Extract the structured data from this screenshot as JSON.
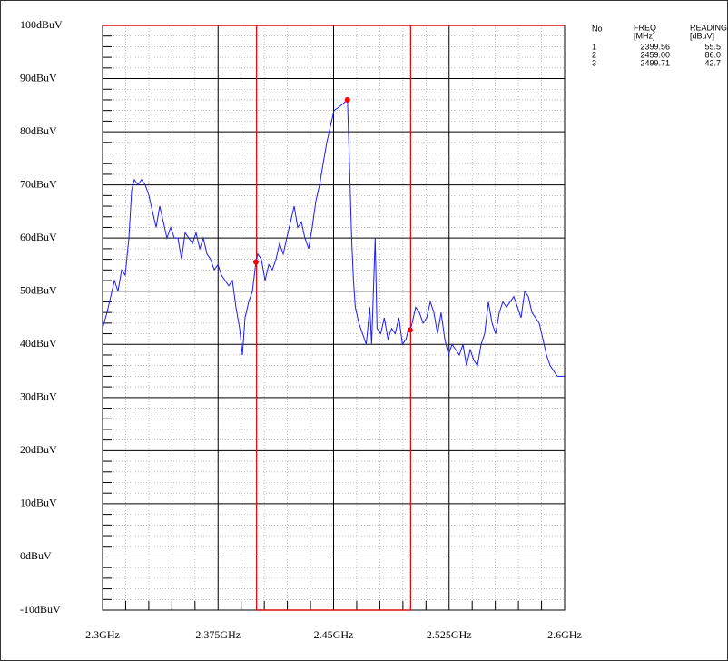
{
  "chart_data": {
    "type": "line",
    "color": "#1a1aff",
    "xlim": [
      2300,
      2600
    ],
    "xticks": [
      {
        "value": 2300,
        "label": "2.3GHz"
      },
      {
        "value": 2375,
        "label": "2.375GHz"
      },
      {
        "value": 2450,
        "label": "2.45GHz"
      },
      {
        "value": 2525,
        "label": "2.525GHz"
      },
      {
        "value": 2600,
        "label": "2.6GHz"
      }
    ],
    "ylim": [
      -10,
      100
    ],
    "yticks": [
      {
        "value": 100,
        "label": "100dBuV"
      },
      {
        "value": 90,
        "label": "90dBuV"
      },
      {
        "value": 80,
        "label": "80dBuV"
      },
      {
        "value": 70,
        "label": "70dBuV"
      },
      {
        "value": 60,
        "label": "60dBuV"
      },
      {
        "value": 50,
        "label": "50dBuV"
      },
      {
        "value": 40,
        "label": "40dBuV"
      },
      {
        "value": 30,
        "label": "30dBuV"
      },
      {
        "value": 20,
        "label": "20dBuV"
      },
      {
        "value": 10,
        "label": "10dBuV"
      },
      {
        "value": 0,
        "label": "0dBuV"
      },
      {
        "value": -10,
        "label": "-10dBuV"
      }
    ],
    "grid": true,
    "limit_band": [
      2400,
      2500
    ],
    "limit_color": "#e00000",
    "x": [
      2300.0,
      2302.9,
      2305.3,
      2307.7,
      2310.0,
      2312.4,
      2314.7,
      2317.1,
      2318.9,
      2320.6,
      2323.0,
      2325.3,
      2327.7,
      2330.1,
      2332.4,
      2334.8,
      2337.1,
      2339.5,
      2341.8,
      2344.2,
      2346.6,
      2348.9,
      2351.3,
      2353.6,
      2356.0,
      2358.4,
      2360.7,
      2363.1,
      2365.4,
      2367.8,
      2370.1,
      2372.5,
      2374.9,
      2377.2,
      2379.6,
      2381.9,
      2384.3,
      2386.6,
      2389.0,
      2390.8,
      2392.5,
      2394.9,
      2397.3,
      2399.56,
      2400.8,
      2403.1,
      2405.5,
      2407.9,
      2410.2,
      2412.6,
      2414.9,
      2417.3,
      2419.6,
      2422.0,
      2424.4,
      2426.7,
      2429.1,
      2431.4,
      2433.8,
      2436.1,
      2438.5,
      2440.9,
      2443.2,
      2445.6,
      2447.9,
      2450.3,
      2452.7,
      2455.0,
      2459.0,
      2460.2,
      2461.7,
      2462.9,
      2464.1,
      2466.4,
      2468.8,
      2471.2,
      2473.5,
      2474.7,
      2477.0,
      2478.2,
      2480.6,
      2482.9,
      2485.3,
      2487.7,
      2490.0,
      2492.4,
      2494.7,
      2497.1,
      2498.6,
      2499.71,
      2501.0,
      2503.3,
      2505.7,
      2508.1,
      2510.4,
      2512.8,
      2515.1,
      2517.5,
      2519.8,
      2522.2,
      2524.6,
      2526.9,
      2529.3,
      2531.6,
      2534.0,
      2536.3,
      2538.7,
      2541.1,
      2543.4,
      2545.8,
      2548.1,
      2550.5,
      2552.9,
      2555.2,
      2557.6,
      2559.9,
      2562.3,
      2564.6,
      2567.0,
      2569.4,
      2571.7,
      2574.1,
      2576.4,
      2578.8,
      2581.1,
      2583.5,
      2585.9,
      2588.2,
      2590.6,
      2592.9,
      2595.3,
      2597.6,
      2600.0
    ],
    "values": [
      43,
      46,
      49,
      52,
      50,
      54,
      53,
      60,
      69,
      71,
      70,
      71,
      70,
      68,
      65,
      62,
      66,
      63,
      60,
      62,
      60,
      60,
      56,
      61,
      60,
      59,
      61,
      58,
      60,
      57,
      56,
      54,
      55,
      53,
      52,
      51,
      52,
      47,
      43,
      38,
      45,
      48,
      50,
      55.5,
      57,
      56,
      52,
      55,
      54,
      56,
      59,
      57,
      60,
      63,
      66,
      62,
      63,
      60,
      58,
      62,
      67,
      70,
      74,
      78,
      81,
      84,
      84.5,
      85,
      86,
      75,
      60,
      52,
      47,
      44,
      42,
      40,
      47,
      40,
      60,
      43,
      42,
      45,
      41,
      43,
      42,
      45,
      40,
      41,
      43,
      42.7,
      44,
      47,
      46,
      44,
      45,
      48,
      46,
      42,
      46,
      41,
      38,
      40,
      39,
      38,
      40,
      36,
      39,
      37,
      36,
      40,
      42,
      48,
      44,
      42,
      46,
      48,
      47,
      48,
      49,
      47,
      45,
      50,
      49,
      46,
      45,
      44,
      41,
      38,
      36,
      35,
      34,
      34,
      34
    ],
    "markers": {
      "color": "#ff0000",
      "header": {
        "no": "No",
        "freq": "FREQ",
        "freq_unit": "[MHz]",
        "reading": "READING",
        "reading_unit": "[dBuV]"
      },
      "labels": [
        "1",
        "2",
        "3"
      ],
      "x": [
        2399.56,
        2459.0,
        2499.71
      ],
      "x_labels": [
        "2399.56",
        "2459.00",
        "2499.71"
      ],
      "values": [
        55.5,
        86.0,
        42.7
      ],
      "value_labels": [
        "55.5",
        "86.0",
        "42.7"
      ]
    }
  }
}
